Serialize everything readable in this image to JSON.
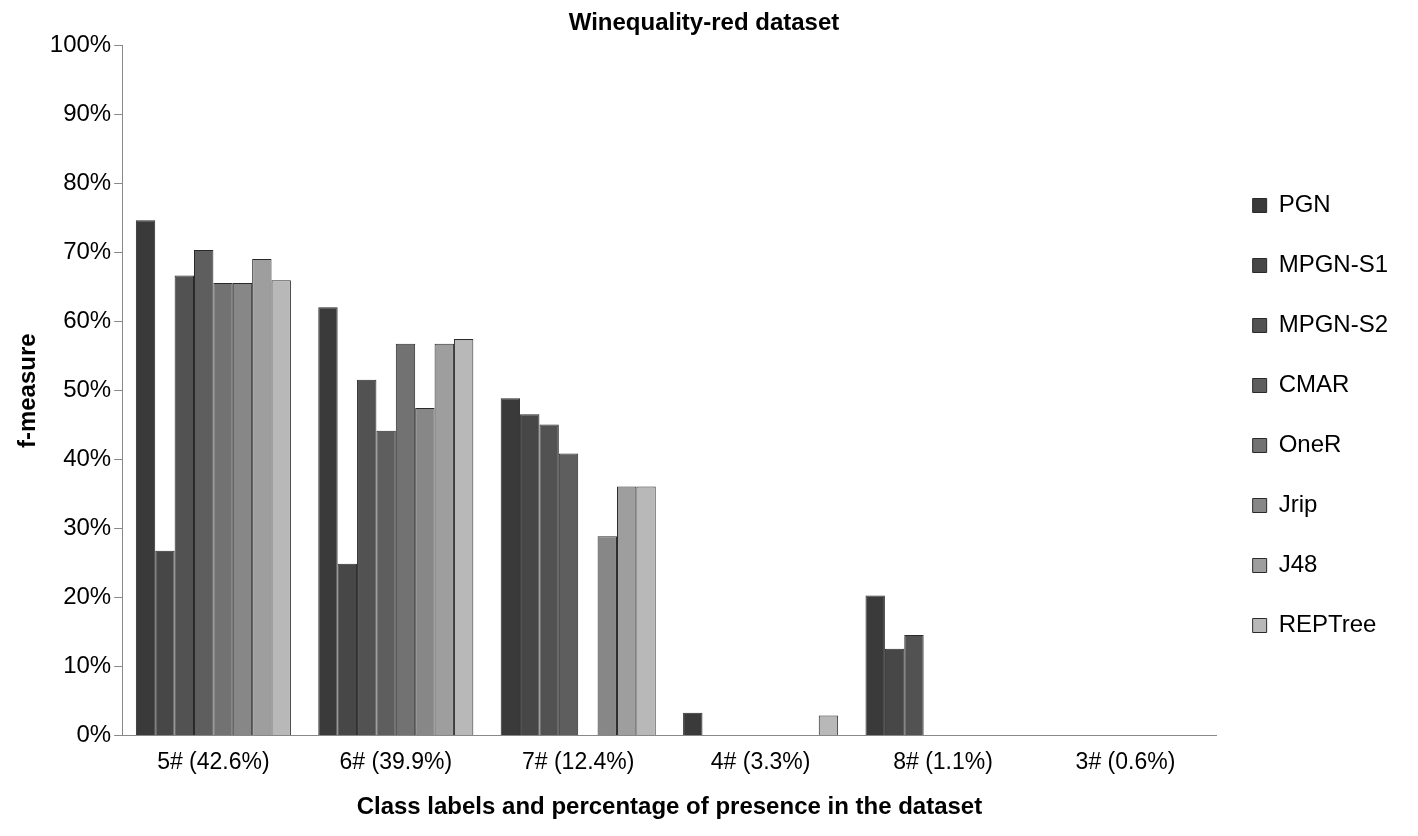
{
  "chart_data": {
    "type": "bar",
    "title": "Winequality-red dataset",
    "xlabel": "Class labels and percentage of presence in the dataset",
    "ylabel": "f-measure",
    "categories": [
      "5# (42.6%)",
      "6# (39.9%)",
      "7# (12.4%)",
      "4# (3.3%)",
      "8# (1.1%)",
      "3# (0.6%)"
    ],
    "series": [
      {
        "name": "PGN",
        "color": "#3a3a3a",
        "values": [
          74.7,
          62.1,
          48.9,
          3.3,
          20.3,
          0
        ]
      },
      {
        "name": "MPGN-S1",
        "color": "#474747",
        "values": [
          26.8,
          24.9,
          46.6,
          0,
          12.6,
          0
        ]
      },
      {
        "name": "MPGN-S2",
        "color": "#525252",
        "values": [
          66.7,
          51.6,
          45.1,
          0,
          14.6,
          0
        ]
      },
      {
        "name": "CMAR",
        "color": "#5e5e5e",
        "values": [
          70.4,
          44.2,
          40.9,
          0,
          0,
          0
        ]
      },
      {
        "name": "OneR",
        "color": "#727272",
        "values": [
          65.6,
          56.8,
          0,
          0,
          0,
          0
        ]
      },
      {
        "name": "Jrip",
        "color": "#878787",
        "values": [
          65.6,
          47.5,
          28.9,
          0,
          0,
          0
        ]
      },
      {
        "name": "J48",
        "color": "#9e9e9e",
        "values": [
          69.1,
          56.8,
          36.1,
          0,
          0,
          0
        ]
      },
      {
        "name": "REPTree",
        "color": "#b8b8b8",
        "values": [
          66.0,
          57.5,
          36.1,
          2.9,
          0,
          0
        ]
      }
    ],
    "ylim": [
      0,
      100
    ],
    "yticks": [
      {
        "value": 0,
        "label": "0%"
      },
      {
        "value": 10,
        "label": "10%"
      },
      {
        "value": 20,
        "label": "20%"
      },
      {
        "value": 30,
        "label": "30%"
      },
      {
        "value": 40,
        "label": "40%"
      },
      {
        "value": 50,
        "label": "50%"
      },
      {
        "value": 60,
        "label": "60%"
      },
      {
        "value": 70,
        "label": "70%"
      },
      {
        "value": 80,
        "label": "80%"
      },
      {
        "value": 90,
        "label": "90%"
      },
      {
        "value": 100,
        "label": "100%"
      }
    ],
    "grid": false,
    "legend": "right"
  }
}
